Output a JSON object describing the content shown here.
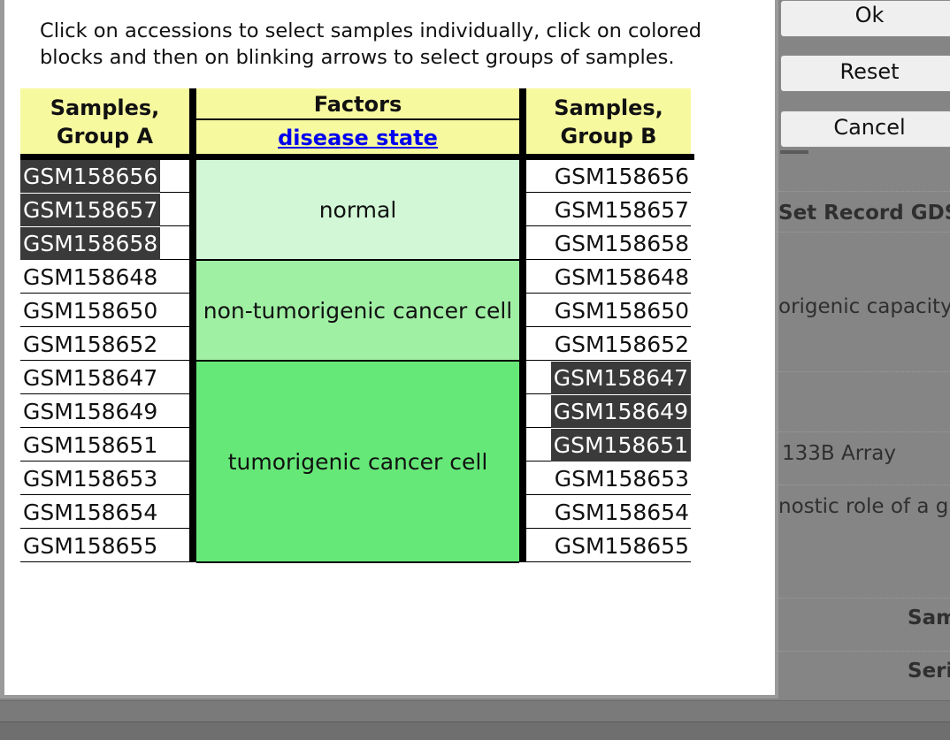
{
  "background": {
    "record_heading": "Set Record GDS",
    "summary_text": "origenic capacity",
    "platform_text": "133B Array",
    "design_text": "nostic role of a g",
    "samples_label": "Sam",
    "series_label": "Seri"
  },
  "buttons": {
    "ok": "Ok",
    "reset": "Reset",
    "cancel": "Cancel"
  },
  "instructions": "Click on accessions to select samples individually, click on colored blocks and then on blinking arrows to select groups of samples.",
  "group_a": {
    "header": "Samples,\nGroup A",
    "header_line1": "Samples,",
    "header_line2": "Group A",
    "samples": [
      {
        "id": "GSM158656",
        "selected": true
      },
      {
        "id": "GSM158657",
        "selected": true
      },
      {
        "id": "GSM158658",
        "selected": true
      },
      {
        "id": "GSM158648",
        "selected": false
      },
      {
        "id": "GSM158650",
        "selected": false
      },
      {
        "id": "GSM158652",
        "selected": false
      },
      {
        "id": "GSM158647",
        "selected": false
      },
      {
        "id": "GSM158649",
        "selected": false
      },
      {
        "id": "GSM158651",
        "selected": false
      },
      {
        "id": "GSM158653",
        "selected": false
      },
      {
        "id": "GSM158654",
        "selected": false
      },
      {
        "id": "GSM158655",
        "selected": false
      }
    ]
  },
  "factors": {
    "title": "Factors",
    "factor_link": "disease state",
    "groups": [
      {
        "label": "normal",
        "count": 3,
        "color": "#d2f7d6"
      },
      {
        "label": "non-tumorigenic cancer cell",
        "count": 3,
        "color": "#a0f0a4"
      },
      {
        "label": "tumorigenic cancer cell",
        "count": 6,
        "color": "#66e878"
      }
    ]
  },
  "group_b": {
    "header_line1": "Samples,",
    "header_line2": "Group B",
    "samples": [
      {
        "id": "GSM158656",
        "selected": false
      },
      {
        "id": "GSM158657",
        "selected": false
      },
      {
        "id": "GSM158658",
        "selected": false
      },
      {
        "id": "GSM158648",
        "selected": false
      },
      {
        "id": "GSM158650",
        "selected": false
      },
      {
        "id": "GSM158652",
        "selected": false
      },
      {
        "id": "GSM158647",
        "selected": true
      },
      {
        "id": "GSM158649",
        "selected": true
      },
      {
        "id": "GSM158651",
        "selected": true
      },
      {
        "id": "GSM158653",
        "selected": false
      },
      {
        "id": "GSM158654",
        "selected": false
      },
      {
        "id": "GSM158655",
        "selected": false
      }
    ]
  },
  "colors": {
    "header_bg": "#f7f99f",
    "selected_bg": "#3a3a3a",
    "link": "#0000ee"
  }
}
